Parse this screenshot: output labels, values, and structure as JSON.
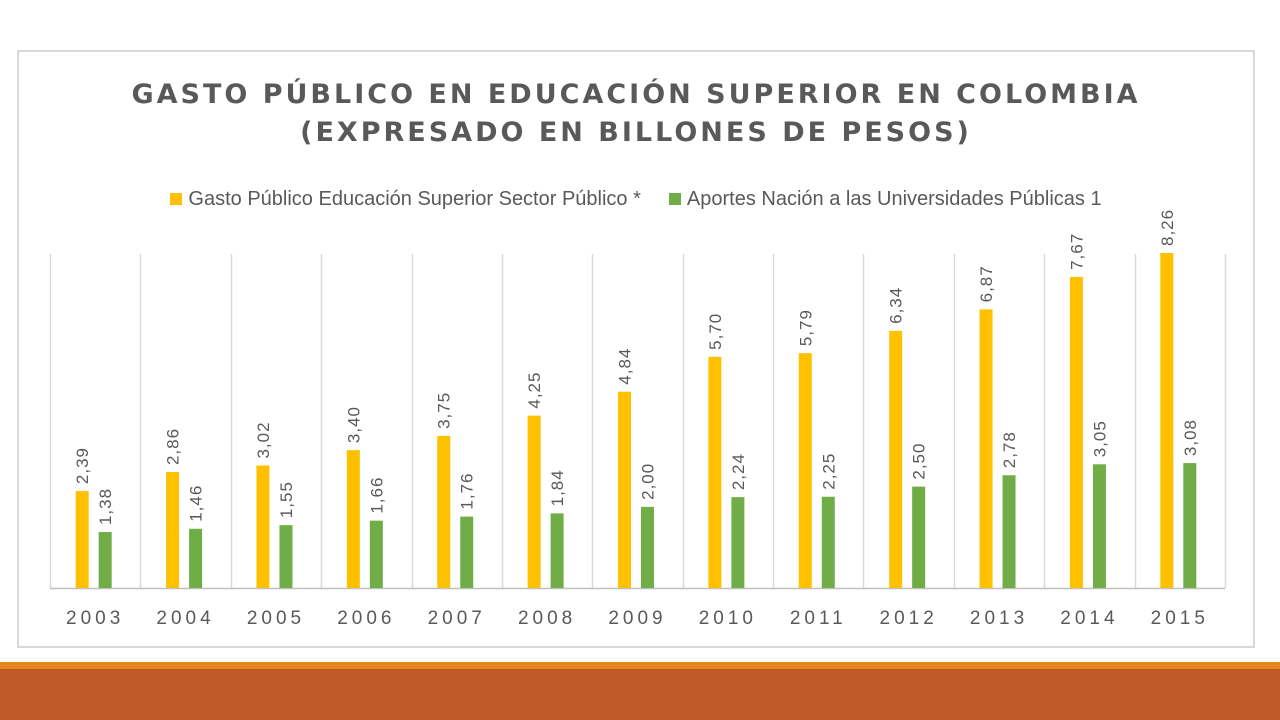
{
  "chart_data": {
    "type": "bar",
    "title_lines": [
      "GASTO PÚBLICO EN EDUCACIÓN SUPERIOR EN COLOMBIA",
      "(EXPRESADO EN BILLONES DE PESOS)"
    ],
    "categories": [
      "2003",
      "2004",
      "2005",
      "2006",
      "2007",
      "2008",
      "2009",
      "2010",
      "2011",
      "2012",
      "2013",
      "2014",
      "2015"
    ],
    "series": [
      {
        "name": "Gasto Público Educación Superior Sector Público *",
        "color": "#ffc000",
        "values": [
          2.39,
          2.86,
          3.02,
          3.4,
          3.75,
          4.25,
          4.84,
          5.7,
          5.79,
          6.34,
          6.87,
          7.67,
          8.26
        ],
        "labels": [
          "2,39",
          "2,86",
          "3,02",
          "3,40",
          "3,75",
          "4,25",
          "4,84",
          "5,70",
          "5,79",
          "6,34",
          "6,87",
          "7,67",
          "8,26"
        ]
      },
      {
        "name": "Aportes Nación a las Universidades Públicas 1",
        "color": "#70ad47",
        "values": [
          1.38,
          1.46,
          1.55,
          1.66,
          1.76,
          1.84,
          2.0,
          2.24,
          2.25,
          2.5,
          2.78,
          3.05,
          3.08
        ],
        "labels": [
          "1,38",
          "1,46",
          "1,55",
          "1,66",
          "1,76",
          "1,84",
          "2,00",
          "2,24",
          "2,25",
          "2,50",
          "2,78",
          "3,05",
          "3,08"
        ]
      }
    ],
    "ylim": [
      0,
      10
    ],
    "grid": "vertical",
    "legend_position": "top"
  }
}
